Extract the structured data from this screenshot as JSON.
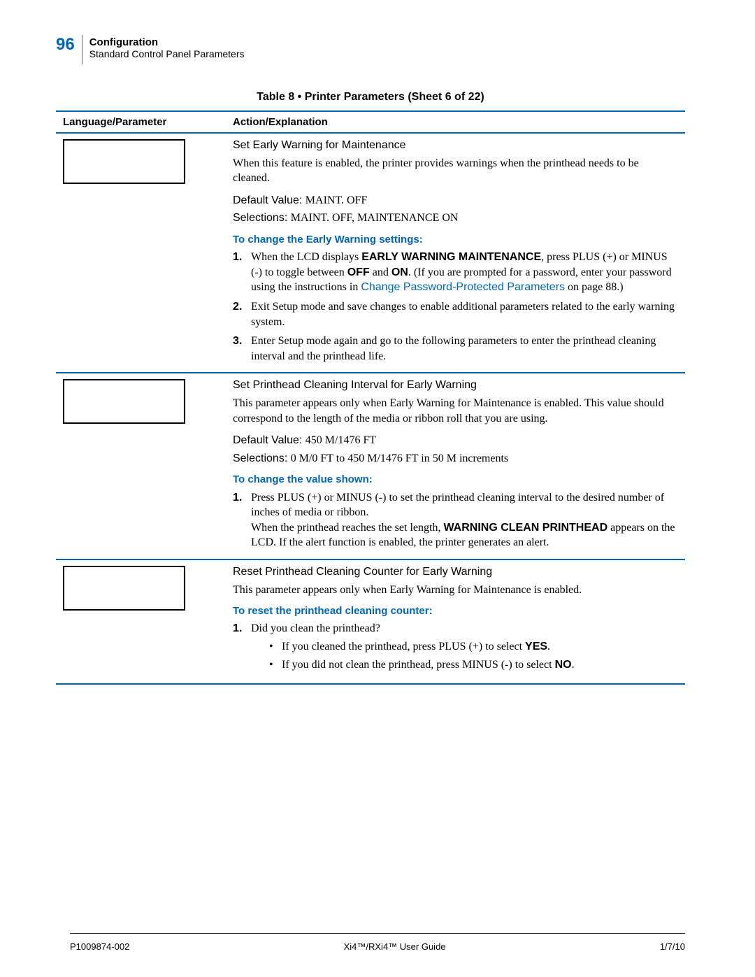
{
  "header": {
    "page_number": "96",
    "chapter": "Configuration",
    "section": "Standard Control Panel Parameters"
  },
  "table_title": "Table 8 • Printer Parameters (Sheet 6 of 22)",
  "columns": {
    "lang": "Language/Parameter",
    "action": "Action/Explanation"
  },
  "rows": [
    {
      "title": "Set Early Warning for Maintenance",
      "desc": "When this feature is enabled, the printer provides warnings when the printhead needs to be cleaned.",
      "default_label": "Default Value:",
      "default_value": "MAINT. OFF",
      "selections_label": "Selections:",
      "selections_value": "MAINT. OFF, MAINTENANCE ON",
      "proc_head": "To change the Early Warning settings:",
      "step1_a": "When the LCD displays ",
      "step1_b": "EARLY WARNING MAINTENANCE",
      "step1_c": ", press PLUS (+) or MINUS (-) to toggle between ",
      "step1_d": "OFF",
      "step1_e": " and ",
      "step1_f": "ON",
      "step1_g": ". (If you are prompted for a password, enter your password using the instructions in ",
      "step1_link": "Change Password-Protected Parameters",
      "step1_h": " on page 88.)",
      "step2": "Exit Setup mode and save changes to enable additional parameters related to the early warning system.",
      "step3": "Enter Setup mode again and go to the following parameters to enter the printhead cleaning interval and the printhead life."
    },
    {
      "title": "Set Printhead Cleaning Interval for Early Warning",
      "desc": "This parameter appears only when Early Warning for Maintenance is enabled. This value should correspond to the length of the media or ribbon roll that you are using.",
      "default_label": "Default Value:",
      "default_value": "450 M/1476 FT",
      "selections_label": "Selections:",
      "selections_value": "0 M/0 FT to 450 M/1476 FT in 50 M increments",
      "proc_head": "To change the value shown:",
      "step1": "Press PLUS (+) or MINUS (-) to set the printhead cleaning interval to the desired number of inches of media or ribbon.",
      "note_a": "When the printhead reaches the set length, ",
      "note_b": "WARNING CLEAN PRINTHEAD",
      "note_c": " appears on the LCD. If the alert function is enabled, the printer generates an alert."
    },
    {
      "title": "Reset Printhead Cleaning Counter for Early Warning",
      "desc": "This parameter appears only when Early Warning for Maintenance is enabled.",
      "proc_head": "To reset the printhead cleaning counter:",
      "step1": "Did you clean the printhead?",
      "bullet1_a": "If you cleaned the printhead, press PLUS (+) to select ",
      "bullet1_b": "YES",
      "bullet1_c": ".",
      "bullet2_a": "If you did not clean the printhead, press MINUS (-) to select ",
      "bullet2_b": "NO",
      "bullet2_c": "."
    }
  ],
  "footer": {
    "left": "P1009874-002",
    "center": "Xi4™/RXi4™ User Guide",
    "right": "1/7/10"
  }
}
